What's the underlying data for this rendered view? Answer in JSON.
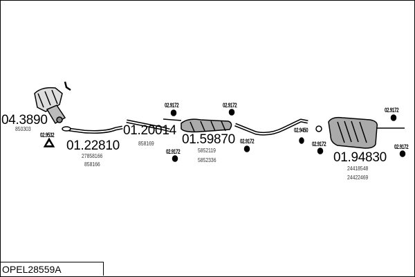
{
  "title": "OPEL28559A",
  "parts": [
    {
      "number": "04.3890",
      "refs": [
        "850303"
      ]
    },
    {
      "number": "01.22810",
      "refs": [
        "27858166",
        "858166"
      ]
    },
    {
      "number": "01.20014",
      "refs": [
        "858169"
      ]
    },
    {
      "number": "01.59870",
      "refs": [
        "5852119",
        "5852336"
      ]
    },
    {
      "number": "01.94830",
      "refs": [
        "24418548",
        "24422469"
      ]
    }
  ],
  "fittings": [
    "02.9532",
    "02.9172",
    "02.9172",
    "02.9172",
    "02.9172",
    "02.9450",
    "02.9172",
    "02.9172",
    "02.9172"
  ]
}
